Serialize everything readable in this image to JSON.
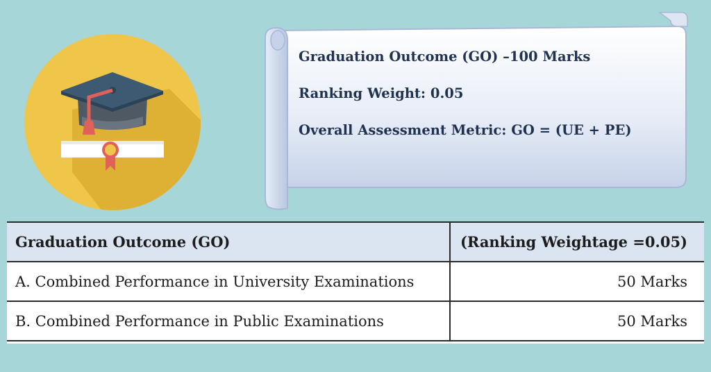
{
  "scroll": {
    "title_line": "Graduation Outcome (GO) –100 Marks",
    "weight_line": "Ranking Weight: 0.05",
    "metric_line": "Overall Assessment Metric: GO = (UE + PE)"
  },
  "table": {
    "headers": [
      "Graduation Outcome (GO)",
      "(Ranking Weightage =0.05)"
    ],
    "rows": [
      [
        "A. Combined Performance in University Examinations",
        "50 Marks"
      ],
      [
        "B.  Combined Performance in Public Examinations",
        "50 Marks"
      ]
    ]
  },
  "icon": {
    "name": "graduation-cap-diploma-icon"
  },
  "colors": {
    "background": "#a6d6d8",
    "icon_circle": "#efc54a",
    "cap": "#3e5a72",
    "tassel": "#e0605a",
    "scroll_text": "#1f3250",
    "table_header_bg": "#dbe4f1"
  }
}
